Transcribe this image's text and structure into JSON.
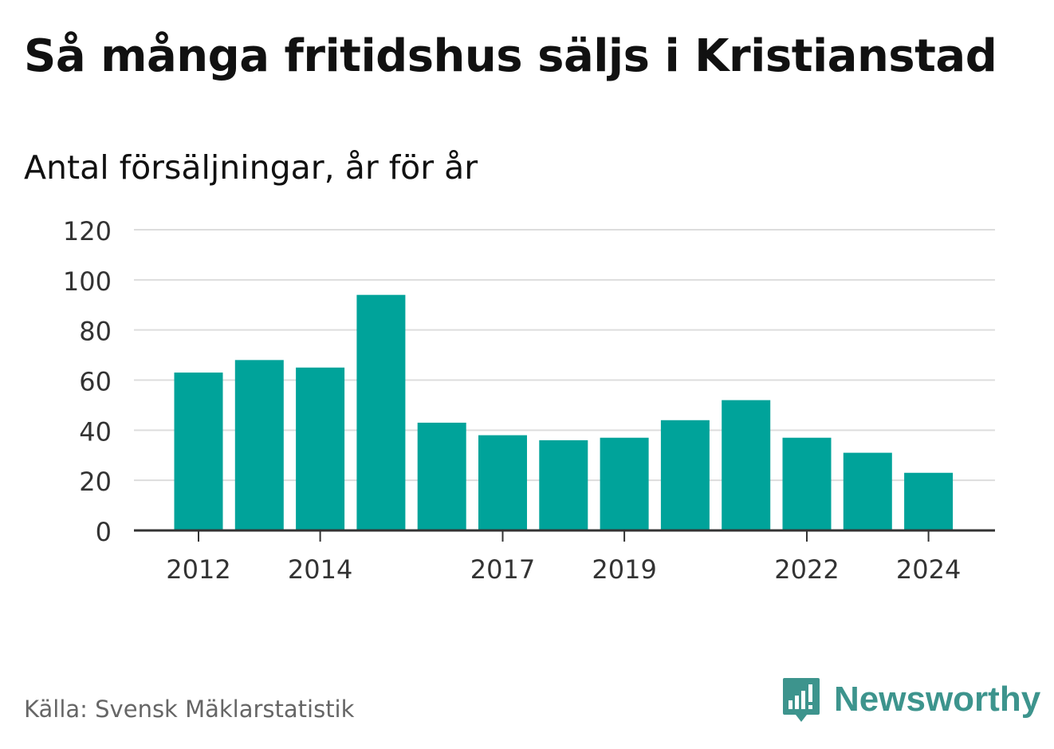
{
  "title": "Så många fritidshus säljs i Kristianstad",
  "subtitle": "Antal försäljningar, år för år",
  "source": "Källa: Svensk Mäklarstatistik",
  "brand": {
    "name": "Newsworthy",
    "icon": "newsworthy-logo-icon",
    "color": "#3d948d"
  },
  "colors": {
    "bar": "#00a39a",
    "grid": "#dddddd",
    "axis": "#333333"
  },
  "chart_data": {
    "type": "bar",
    "categories": [
      "2012",
      "2013",
      "2014",
      "2015",
      "2016",
      "2017",
      "2018",
      "2019",
      "2020",
      "2021",
      "2022",
      "2023",
      "2024"
    ],
    "values": [
      63,
      68,
      65,
      94,
      43,
      38,
      36,
      37,
      44,
      52,
      37,
      31,
      23
    ],
    "x_tick_labels": [
      "2012",
      "2014",
      "2017",
      "2019",
      "2022",
      "2024"
    ],
    "y_ticks": [
      "0",
      "20",
      "40",
      "60",
      "80",
      "100",
      "120"
    ],
    "ylim": [
      0,
      120
    ],
    "grid": true,
    "legend": false
  }
}
